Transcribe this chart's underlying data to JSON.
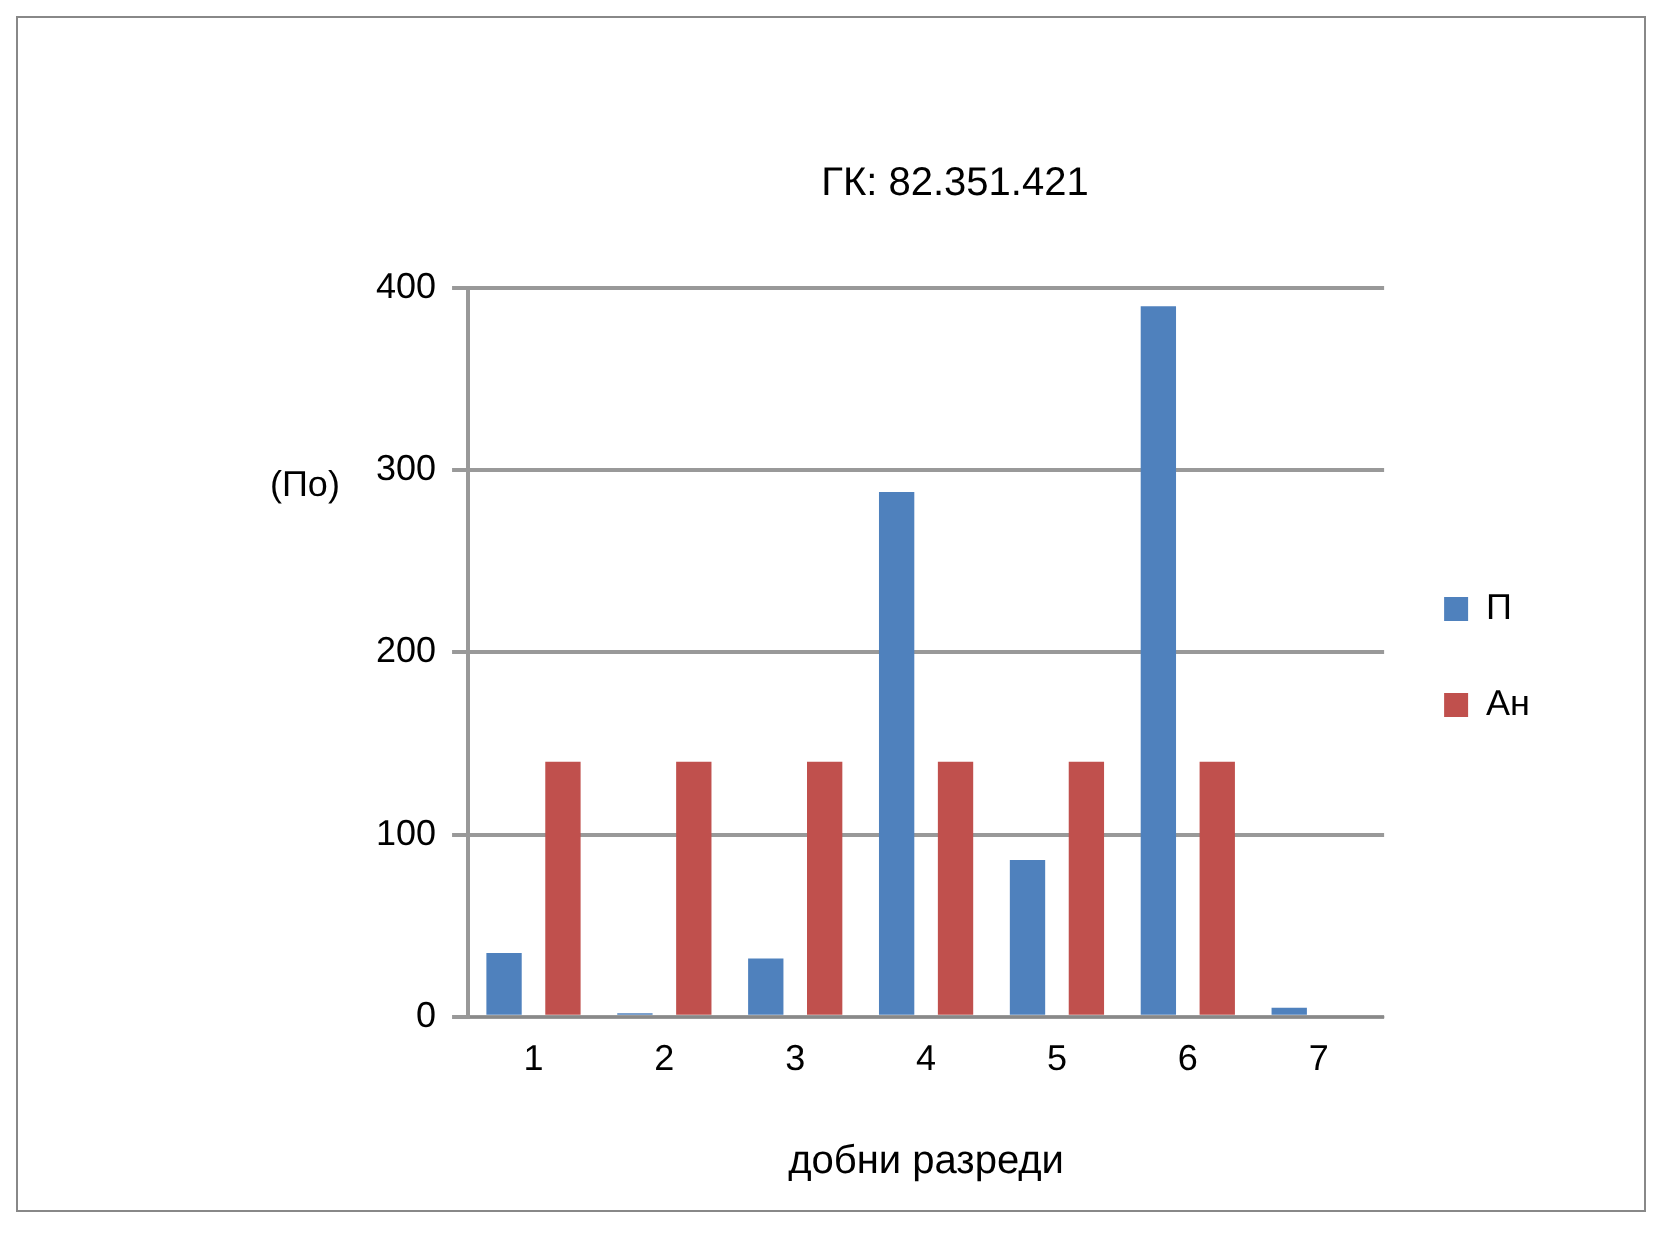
{
  "chart_data": {
    "type": "bar",
    "title": "ГК: 82.351.421",
    "xlabel": "добни разреди",
    "ylabel": "(По)",
    "categories": [
      "1",
      "2",
      "3",
      "4",
      "5",
      "6",
      "7"
    ],
    "series": [
      {
        "name": "П",
        "color": "#4f81bd",
        "values": [
          35,
          2,
          32,
          288,
          86,
          390,
          5
        ]
      },
      {
        "name": "Ан",
        "color": "#c0504d",
        "values": [
          140,
          140,
          140,
          140,
          140,
          140,
          null
        ]
      }
    ],
    "ylim": [
      0,
      400
    ],
    "yticks": [
      0,
      100,
      200,
      300,
      400
    ],
    "grid": "y",
    "legend": "right"
  }
}
